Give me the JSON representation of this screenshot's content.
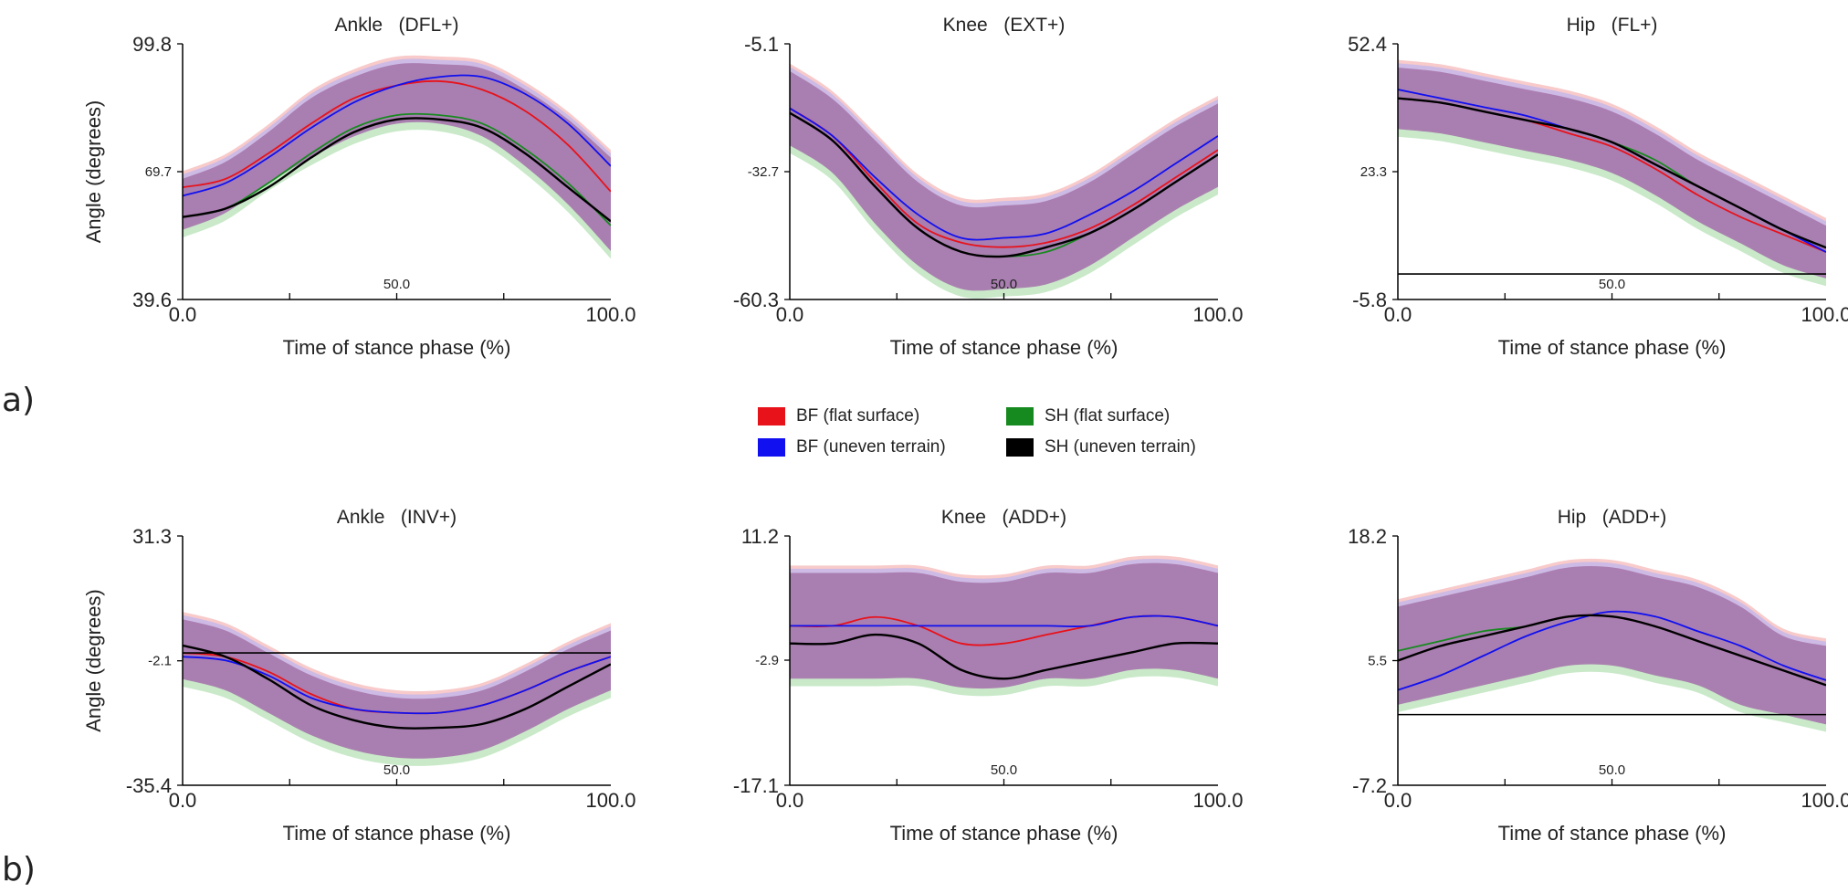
{
  "panel_labels": {
    "a": "a)",
    "b": "b)"
  },
  "legend": [
    {
      "label": "BF (flat surface)",
      "color": "#e8121a"
    },
    {
      "label": "SH (flat surface)",
      "color": "#178a1f"
    },
    {
      "label": "BF (uneven terrain)",
      "color": "#1010f0"
    },
    {
      "label": "SH (uneven terrain)",
      "color": "#000000"
    }
  ],
  "colors": {
    "bf_flat": "#e8121a",
    "bf_uneven": "#1010f0",
    "sh_flat": "#178a1f",
    "sh_uneven": "#000000",
    "band_red": "#f5b3b3",
    "band_blue": "#b0b0f6",
    "band_green": "#b2e0b2",
    "band_overlap": "#a87aae"
  },
  "chart_data": [
    {
      "type": "line",
      "title": "Ankle   (DFL+)",
      "xlabel": "Time of stance phase (%)",
      "ylabel": "Angle (degrees)",
      "xlim": [
        0,
        100
      ],
      "ylim": [
        39.6,
        99.8
      ],
      "yticks": [
        39.6,
        69.7,
        99.8
      ],
      "xticks": [
        0,
        50,
        100
      ],
      "x": [
        0,
        10,
        20,
        30,
        40,
        50,
        60,
        70,
        80,
        90,
        100
      ],
      "zero_line": null,
      "band": {
        "center": [
          62,
          66,
          73,
          80,
          85,
          88,
          88,
          86,
          80,
          72,
          62
        ],
        "half_width": [
          6,
          6,
          6,
          7,
          7,
          7,
          7,
          8,
          9,
          10,
          11
        ]
      },
      "series": [
        {
          "name": "BF (flat surface)",
          "values": [
            66,
            68,
            74,
            81,
            87,
            90,
            91,
            89,
            84,
            76,
            65
          ]
        },
        {
          "name": "BF (uneven terrain)",
          "values": [
            64,
            67,
            73,
            80,
            86,
            90,
            92,
            92,
            88,
            81,
            71
          ]
        },
        {
          "name": "SH (flat surface)",
          "values": [
            59,
            61,
            67,
            74,
            80,
            83,
            83,
            81,
            75,
            67,
            57
          ]
        },
        {
          "name": "SH (uneven terrain)",
          "values": [
            59,
            61,
            66,
            73,
            79,
            82,
            82,
            80,
            74,
            66,
            58
          ]
        }
      ]
    },
    {
      "type": "line",
      "title": "Knee   (EXT+)",
      "xlabel": "Time of stance phase (%)",
      "ylabel": "",
      "xlim": [
        0,
        100
      ],
      "ylim": [
        -60.3,
        -5.1
      ],
      "yticks": [
        -60.3,
        -32.7,
        -5.1
      ],
      "xticks": [
        0,
        50,
        100
      ],
      "x": [
        0,
        10,
        20,
        30,
        40,
        50,
        60,
        70,
        80,
        90,
        100
      ],
      "zero_line": null,
      "band": {
        "center": [
          -19,
          -25,
          -35,
          -44,
          -49,
          -49,
          -48,
          -44,
          -38,
          -32,
          -27
        ],
        "half_width": [
          8,
          8,
          9,
          9,
          9,
          9,
          9,
          9,
          9,
          9,
          9
        ]
      },
      "series": [
        {
          "name": "BF (flat surface)",
          "values": [
            -19,
            -25,
            -35,
            -44,
            -48,
            -49,
            -48,
            -45,
            -40,
            -34,
            -28
          ]
        },
        {
          "name": "BF (uneven terrain)",
          "values": [
            -19,
            -25,
            -34,
            -42,
            -47,
            -47,
            -46,
            -42,
            -37,
            -31,
            -25
          ]
        },
        {
          "name": "SH (flat surface)",
          "values": [
            -20,
            -26,
            -36,
            -45,
            -50,
            -51,
            -50,
            -46,
            -41,
            -35,
            -29
          ]
        },
        {
          "name": "SH (uneven terrain)",
          "values": [
            -20,
            -26,
            -36,
            -45,
            -50,
            -51,
            -49,
            -46,
            -41,
            -35,
            -29
          ]
        }
      ]
    },
    {
      "type": "line",
      "title": "Hip   (FL+)",
      "xlabel": "Time of stance phase (%)",
      "ylabel": "",
      "xlim": [
        0,
        100
      ],
      "ylim": [
        -5.8,
        52.4
      ],
      "yticks": [
        -5.8,
        23.3,
        52.4
      ],
      "xticks": [
        0,
        50,
        100
      ],
      "x": [
        0,
        10,
        20,
        30,
        40,
        50,
        60,
        70,
        80,
        90,
        100
      ],
      "zero_line": 0,
      "band": {
        "center": [
          40,
          39,
          37,
          35,
          33,
          30,
          25,
          19,
          14,
          9,
          5
        ],
        "half_width": [
          7,
          7,
          7,
          7,
          7,
          7,
          7,
          7,
          7,
          7,
          6
        ]
      },
      "series": [
        {
          "name": "BF (flat surface)",
          "values": [
            40,
            39,
            37,
            35,
            32,
            29,
            24,
            18,
            13,
            9,
            5
          ]
        },
        {
          "name": "BF (uneven terrain)",
          "values": [
            42,
            40,
            38,
            36,
            33,
            30,
            25,
            20,
            15,
            10,
            5
          ]
        },
        {
          "name": "SH (flat surface)",
          "values": [
            40,
            39,
            37,
            35,
            33,
            30,
            26,
            20,
            15,
            10,
            6
          ]
        },
        {
          "name": "SH (uneven terrain)",
          "values": [
            40,
            39,
            37,
            35,
            33,
            30,
            25,
            20,
            15,
            10,
            6
          ]
        }
      ]
    },
    {
      "type": "line",
      "title": "Ankle   (INV+)",
      "xlabel": "Time of stance phase (%)",
      "ylabel": "Angle (degrees)",
      "xlim": [
        0,
        100
      ],
      "ylim": [
        -35.4,
        31.3
      ],
      "yticks": [
        -35.4,
        -2.1,
        31.3
      ],
      "xticks": [
        0,
        50,
        100
      ],
      "x": [
        0,
        10,
        20,
        30,
        40,
        50,
        60,
        70,
        80,
        90,
        100
      ],
      "zero_line": 0,
      "band": {
        "center": [
          1,
          -2,
          -8,
          -14,
          -18,
          -20,
          -20,
          -18,
          -13,
          -7,
          -2
        ],
        "half_width": [
          8,
          8,
          8,
          8,
          8,
          8,
          8,
          8,
          8,
          8,
          8
        ]
      },
      "series": [
        {
          "name": "BF (flat surface)",
          "values": [
            0,
            -1,
            -5,
            -11,
            -15,
            -16,
            -16,
            -14,
            -10,
            -5,
            -1
          ]
        },
        {
          "name": "BF (uneven terrain)",
          "values": [
            -1,
            -2,
            -6,
            -12,
            -15,
            -16,
            -16,
            -14,
            -10,
            -5,
            -1
          ]
        },
        {
          "name": "SH (flat surface)",
          "values": [
            2,
            -1,
            -7,
            -14,
            -18,
            -20,
            -20,
            -19,
            -15,
            -9,
            -3
          ]
        },
        {
          "name": "SH (uneven terrain)",
          "values": [
            2,
            -1,
            -7,
            -14,
            -18,
            -20,
            -20,
            -19,
            -15,
            -9,
            -3
          ]
        }
      ]
    },
    {
      "type": "line",
      "title": "Knee   (ADD+)",
      "xlabel": "Time of stance phase (%)",
      "ylabel": "",
      "xlim": [
        0,
        100
      ],
      "ylim": [
        -17.1,
        11.2
      ],
      "yticks": [
        -17.1,
        -2.9,
        11.2
      ],
      "xticks": [
        0,
        50,
        100
      ],
      "x": [
        0,
        10,
        20,
        30,
        40,
        50,
        60,
        70,
        80,
        90,
        100
      ],
      "zero_line": null,
      "band": {
        "center": [
          1,
          1,
          1,
          1,
          0,
          0,
          1,
          1,
          2,
          2,
          1
        ],
        "half_width": [
          6,
          6,
          6,
          6,
          6,
          6,
          6,
          6,
          6,
          6,
          6
        ]
      },
      "series": [
        {
          "name": "BF (flat surface)",
          "values": [
            1,
            1,
            2,
            1,
            -1,
            -1,
            0,
            1,
            2,
            2,
            1
          ]
        },
        {
          "name": "BF (uneven terrain)",
          "values": [
            1,
            1,
            1,
            1,
            1,
            1,
            1,
            1,
            2,
            2,
            1
          ]
        },
        {
          "name": "SH (flat surface)",
          "values": [
            -1,
            -1,
            0,
            -1,
            -4,
            -5,
            -4,
            -3,
            -2,
            -1,
            -1
          ]
        },
        {
          "name": "SH (uneven terrain)",
          "values": [
            -1,
            -1,
            0,
            -1,
            -4,
            -5,
            -4,
            -3,
            -2,
            -1,
            -1
          ]
        }
      ]
    },
    {
      "type": "line",
      "title": "Hip   (ADD+)",
      "xlabel": "Time of stance phase (%)",
      "ylabel": "",
      "xlim": [
        0,
        100
      ],
      "ylim": [
        -7.2,
        18.2
      ],
      "yticks": [
        -7.2,
        5.5,
        18.2
      ],
      "xticks": [
        0,
        50,
        100
      ],
      "x": [
        0,
        10,
        20,
        30,
        40,
        50,
        60,
        70,
        80,
        90,
        100
      ],
      "zero_line": 0,
      "band": {
        "center": [
          6,
          7,
          8,
          9,
          10,
          10,
          9,
          8,
          6,
          4,
          3
        ],
        "half_width": [
          5,
          5,
          5,
          5,
          5,
          5,
          5,
          5,
          5,
          4,
          4
        ]
      },
      "series": [
        {
          "name": "BF (flat surface)",
          "values": [
            5.5,
            7,
            8,
            9,
            10,
            10,
            9,
            7.5,
            6,
            4.5,
            3
          ]
        },
        {
          "name": "BF (uneven terrain)",
          "values": [
            2.5,
            4,
            6,
            8,
            9.5,
            10.5,
            10,
            8.5,
            7,
            5,
            3.5
          ]
        },
        {
          "name": "SH (flat surface)",
          "values": [
            6.5,
            7.5,
            8.5,
            9,
            10,
            10,
            9,
            7.5,
            6,
            4.5,
            3
          ]
        },
        {
          "name": "SH (uneven terrain)",
          "values": [
            5.5,
            7,
            8,
            9,
            10,
            10,
            9,
            7.5,
            6,
            4.5,
            3
          ]
        }
      ]
    }
  ]
}
